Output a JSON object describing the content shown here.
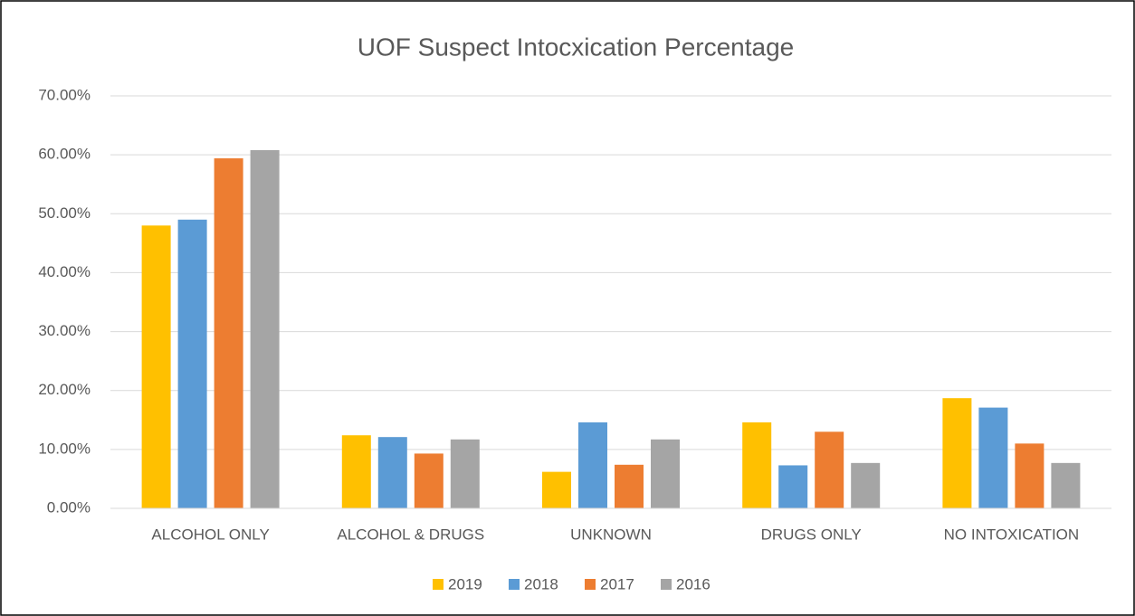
{
  "chart_data": {
    "type": "bar",
    "title": "UOF Suspect Intocxication Percentage",
    "categories": [
      "ALCOHOL ONLY",
      "ALCOHOL & DRUGS",
      "UNKNOWN",
      "DRUGS ONLY",
      "NO INTOXICATION"
    ],
    "series": [
      {
        "name": "2019",
        "color": "#ffc000",
        "values": [
          48.0,
          12.4,
          6.2,
          14.6,
          18.7
        ]
      },
      {
        "name": "2018",
        "color": "#5b9bd5",
        "values": [
          49.0,
          12.1,
          14.6,
          7.3,
          17.1
        ]
      },
      {
        "name": "2017",
        "color": "#ed7d31",
        "values": [
          59.4,
          9.3,
          7.4,
          13.0,
          11.0
        ]
      },
      {
        "name": "2016",
        "color": "#a5a5a5",
        "values": [
          60.8,
          11.7,
          11.7,
          7.7,
          7.7
        ]
      }
    ],
    "ylim": [
      0,
      70
    ],
    "yticks": [
      {
        "value": 0,
        "label": "0.00%"
      },
      {
        "value": 10,
        "label": "10.00%"
      },
      {
        "value": 20,
        "label": "20.00%"
      },
      {
        "value": 30,
        "label": "30.00%"
      },
      {
        "value": 40,
        "label": "40.00%"
      },
      {
        "value": 50,
        "label": "50.00%"
      },
      {
        "value": 60,
        "label": "60.00%"
      },
      {
        "value": 70,
        "label": "70.00%"
      }
    ],
    "grid": true,
    "legend": "bottom"
  }
}
